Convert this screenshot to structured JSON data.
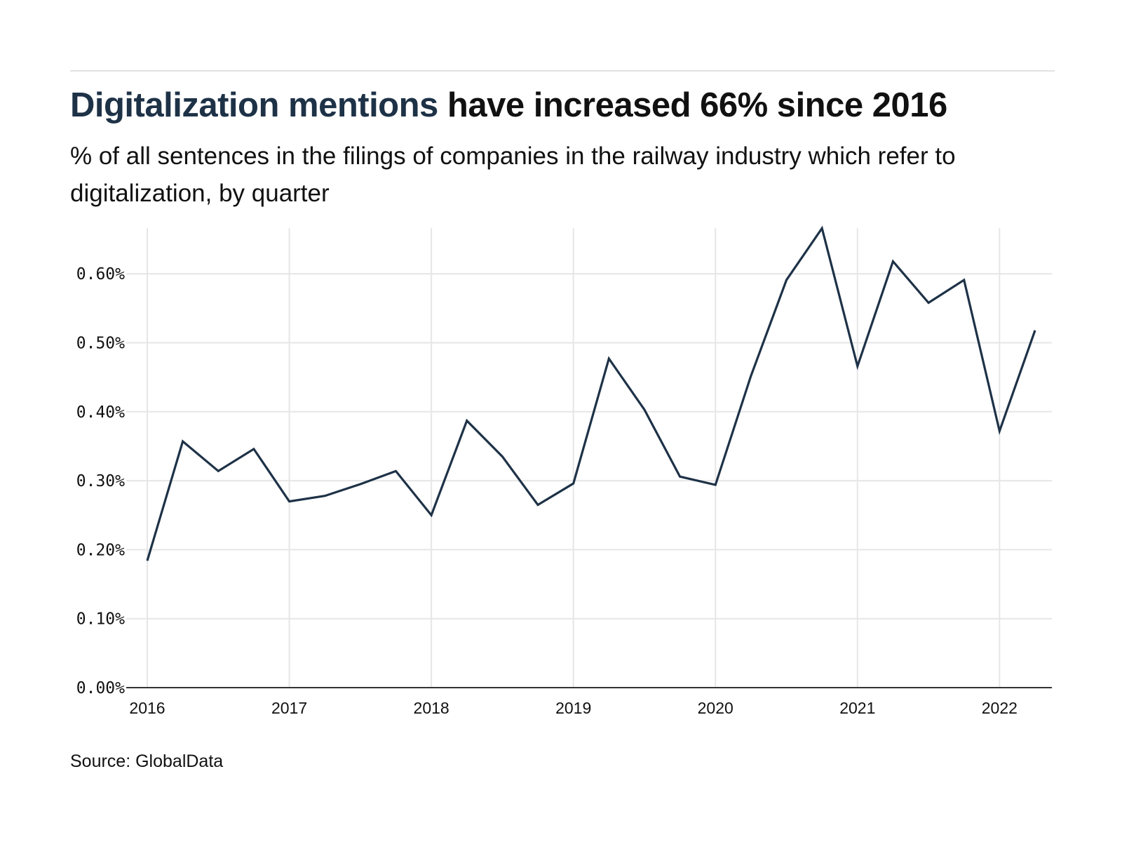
{
  "header": {
    "title_accent": "Digitalization mentions",
    "title_rest": " have increased 66% since 2016",
    "subtitle": "% of all sentences in the filings of companies in the railway industry which refer to digitalization, by quarter"
  },
  "footer": {
    "source": "Source: GlobalData"
  },
  "colors": {
    "accent": "#1e3247",
    "line": "#1e3247",
    "grid": "#e6e6e6",
    "axis": "#333333"
  },
  "chart_data": {
    "type": "line",
    "title": "Digitalization mentions have increased 66% since 2016",
    "subtitle": "% of all sentences in the filings of companies in the railway industry which refer to digitalization, by quarter",
    "xlabel": "",
    "ylabel": "",
    "ylim": [
      0,
      0.67
    ],
    "yticks": [
      0,
      0.1,
      0.2,
      0.3,
      0.4,
      0.5,
      0.6
    ],
    "ytick_labels": [
      "0.00%",
      "0.10%",
      "0.20%",
      "0.30%",
      "0.40%",
      "0.50%",
      "0.60%"
    ],
    "xticks": [
      2016,
      2017,
      2018,
      2019,
      2020,
      2021,
      2022
    ],
    "xtick_labels": [
      "2016",
      "2017",
      "2018",
      "2019",
      "2020",
      "2021",
      "2022"
    ],
    "xlim": [
      2016,
      2022.25
    ],
    "grid": true,
    "legend": "none",
    "series": [
      {
        "name": "Digitalization mentions (%)",
        "x": [
          "2016 Q1",
          "2016 Q2",
          "2016 Q3",
          "2016 Q4",
          "2017 Q1",
          "2017 Q2",
          "2017 Q3",
          "2017 Q4",
          "2018 Q1",
          "2018 Q2",
          "2018 Q3",
          "2018 Q4",
          "2019 Q1",
          "2019 Q2",
          "2019 Q3",
          "2019 Q4",
          "2020 Q1",
          "2020 Q2",
          "2020 Q3",
          "2020 Q4",
          "2021 Q1",
          "2021 Q2",
          "2021 Q3",
          "2021 Q4",
          "2022 Q1",
          "2022 Q2"
        ],
        "values": [
          0.184,
          0.357,
          0.314,
          0.346,
          0.27,
          0.278,
          0.295,
          0.314,
          0.25,
          0.387,
          0.335,
          0.265,
          0.296,
          0.477,
          0.403,
          0.306,
          0.294,
          0.452,
          0.591,
          0.666,
          0.466,
          0.618,
          0.558,
          0.591,
          0.372,
          0.518
        ]
      }
    ]
  }
}
